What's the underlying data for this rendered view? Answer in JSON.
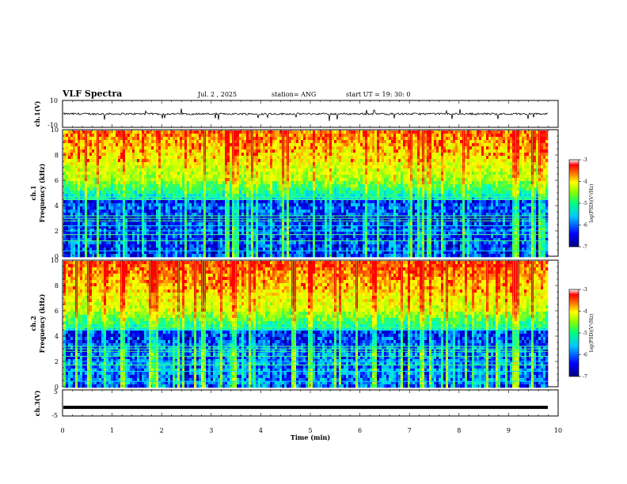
{
  "header": {
    "title": "VLF Spectra",
    "date": "Jul. 2 , 2025",
    "station": "station= ANG",
    "start": "start UT =  19: 30: 0"
  },
  "chart_data": [
    {
      "type": "line",
      "panel": "ch1-waveform",
      "ylabel": "ch.1(V)",
      "ylim": [
        -10,
        10
      ],
      "yticks": [
        "10",
        "-10"
      ],
      "xlim": [
        0,
        10
      ],
      "series": [
        {
          "values": [
            0
          ]
        }
      ]
    },
    {
      "type": "heatmap",
      "panel": "ch1-spectrogram",
      "ylabel": "ch.1 Frequency (kHz)",
      "ylim": [
        0,
        10
      ],
      "yticks": [
        "0",
        "2",
        "4",
        "6",
        "8",
        "10"
      ],
      "xlim": [
        0,
        10
      ],
      "colorbar": {
        "label": "log(PSD)(V²/Hz)",
        "range": [
          -7,
          -3
        ],
        "ticks": [
          "-3",
          "-4",
          "-5",
          "-6",
          "-7"
        ]
      }
    },
    {
      "type": "heatmap",
      "panel": "ch2-spectrogram",
      "ylabel": "ch.2 Frequency (kHz)",
      "ylim": [
        0,
        10
      ],
      "yticks": [
        "0",
        "2",
        "4",
        "6",
        "8",
        "10"
      ],
      "xlim": [
        0,
        10
      ],
      "colorbar": {
        "label": "log(PSD)(V²/Hz)",
        "range": [
          -7,
          -3
        ],
        "ticks": [
          "-3",
          "-4",
          "-5",
          "-6",
          "-7"
        ]
      }
    },
    {
      "type": "line",
      "panel": "ch3-waveform",
      "ylabel": "ch.3(V)",
      "ylim": [
        -5,
        5
      ],
      "yticks": [
        "5",
        "-5"
      ],
      "xlim": [
        0,
        10
      ],
      "series": [
        {
          "values": [
            -1.7
          ]
        }
      ]
    }
  ],
  "xaxis": {
    "label": "Time (min)",
    "ticks": [
      "0",
      "1",
      "2",
      "3",
      "4",
      "5",
      "6",
      "7",
      "8",
      "9",
      "10"
    ]
  },
  "colors": {
    "colormap": [
      "#000080",
      "#0000ff",
      "#00c0ff",
      "#00ffc0",
      "#40ff40",
      "#c0ff00",
      "#ffff00",
      "#ff8000",
      "#ff0000",
      "#ffffff"
    ]
  }
}
